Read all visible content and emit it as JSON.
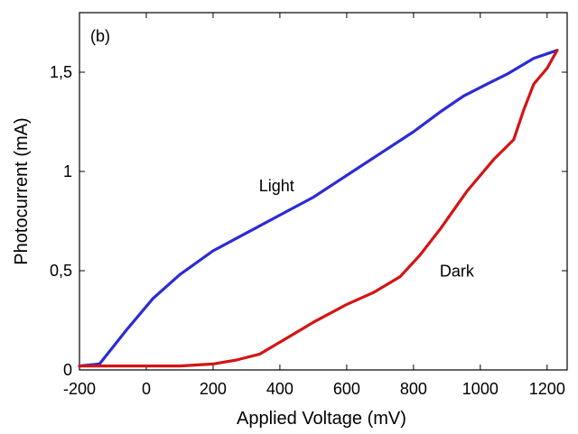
{
  "chart_data": {
    "type": "line",
    "panel_label": "(b)",
    "xlabel": "Applied Voltage (mV)",
    "ylabel": "Photocurrent (mA)",
    "xlim": [
      -200,
      1260
    ],
    "ylim": [
      0,
      1.8
    ],
    "x_ticks": [
      -200,
      0,
      200,
      400,
      600,
      800,
      1000,
      1200
    ],
    "x_tick_labels": [
      "-200",
      "0",
      "200",
      "400",
      "600",
      "800",
      "1000",
      "1200"
    ],
    "y_ticks": [
      0,
      0.5,
      1,
      1.5
    ],
    "y_tick_labels": [
      "0",
      "0,5",
      "1",
      "1,5"
    ],
    "grid": false,
    "legend": "none",
    "series": [
      {
        "name": "Light",
        "color": "#2b2bd6",
        "x": [
          -200,
          -140,
          -60,
          20,
          100,
          200,
          300,
          400,
          500,
          600,
          700,
          800,
          880,
          950,
          1020,
          1080,
          1160,
          1230
        ],
        "y": [
          0.02,
          0.03,
          0.2,
          0.36,
          0.48,
          0.6,
          0.69,
          0.78,
          0.87,
          0.98,
          1.09,
          1.2,
          1.3,
          1.38,
          1.44,
          1.49,
          1.57,
          1.61
        ]
      },
      {
        "name": "Dark",
        "color": "#d41414",
        "x": [
          -200,
          -100,
          0,
          100,
          200,
          270,
          340,
          400,
          500,
          600,
          680,
          760,
          820,
          880,
          960,
          1040,
          1100,
          1130,
          1160,
          1200,
          1230
        ],
        "y": [
          0.02,
          0.02,
          0.02,
          0.02,
          0.03,
          0.05,
          0.08,
          0.14,
          0.24,
          0.33,
          0.39,
          0.47,
          0.58,
          0.71,
          0.9,
          1.06,
          1.16,
          1.31,
          1.44,
          1.52,
          1.61
        ]
      }
    ],
    "annotations": [
      {
        "text": "Light",
        "x": 390,
        "y": 0.9
      },
      {
        "text": "Dark",
        "x": 930,
        "y": 0.47
      }
    ]
  }
}
